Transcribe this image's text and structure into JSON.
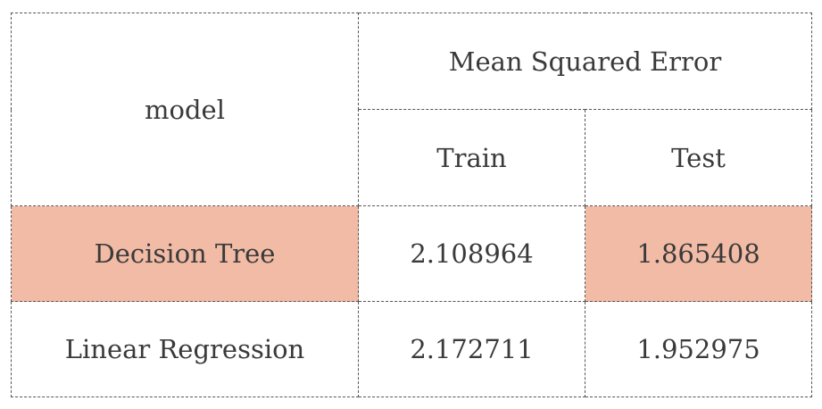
{
  "table": {
    "header": {
      "model_label": "model",
      "group_label": "Mean Squared Error",
      "train_label": "Train",
      "test_label": "Test"
    },
    "rows": [
      {
        "model": "Decision Tree",
        "train": "2.108964",
        "test": "1.865408"
      },
      {
        "model": "Linear Regression",
        "train": "2.172711",
        "test": "1.952975"
      }
    ],
    "highlight_color": "#f2bba6"
  }
}
